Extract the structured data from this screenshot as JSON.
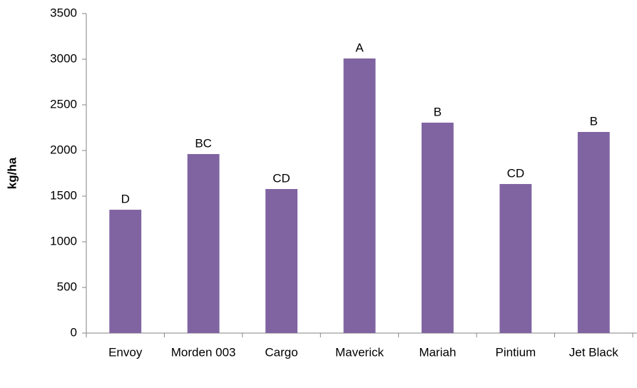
{
  "chart_data": {
    "type": "bar",
    "y_label": "kg/ha",
    "categories": [
      "Envoy",
      "Morden 003",
      "Cargo",
      "Maverick",
      "Mariah",
      "Pintium",
      "Jet Black"
    ],
    "values": [
      1351,
      1961,
      1578,
      3008,
      2305,
      1633,
      2203
    ],
    "annotations": [
      "D",
      "BC",
      "CD",
      "A",
      "B",
      "CD",
      "B"
    ],
    "color": "#8064a2",
    "ylim": [
      0,
      3500
    ],
    "yticks": [
      0,
      500,
      1000,
      1500,
      2000,
      2500,
      3000,
      3500
    ],
    "grid": false
  }
}
